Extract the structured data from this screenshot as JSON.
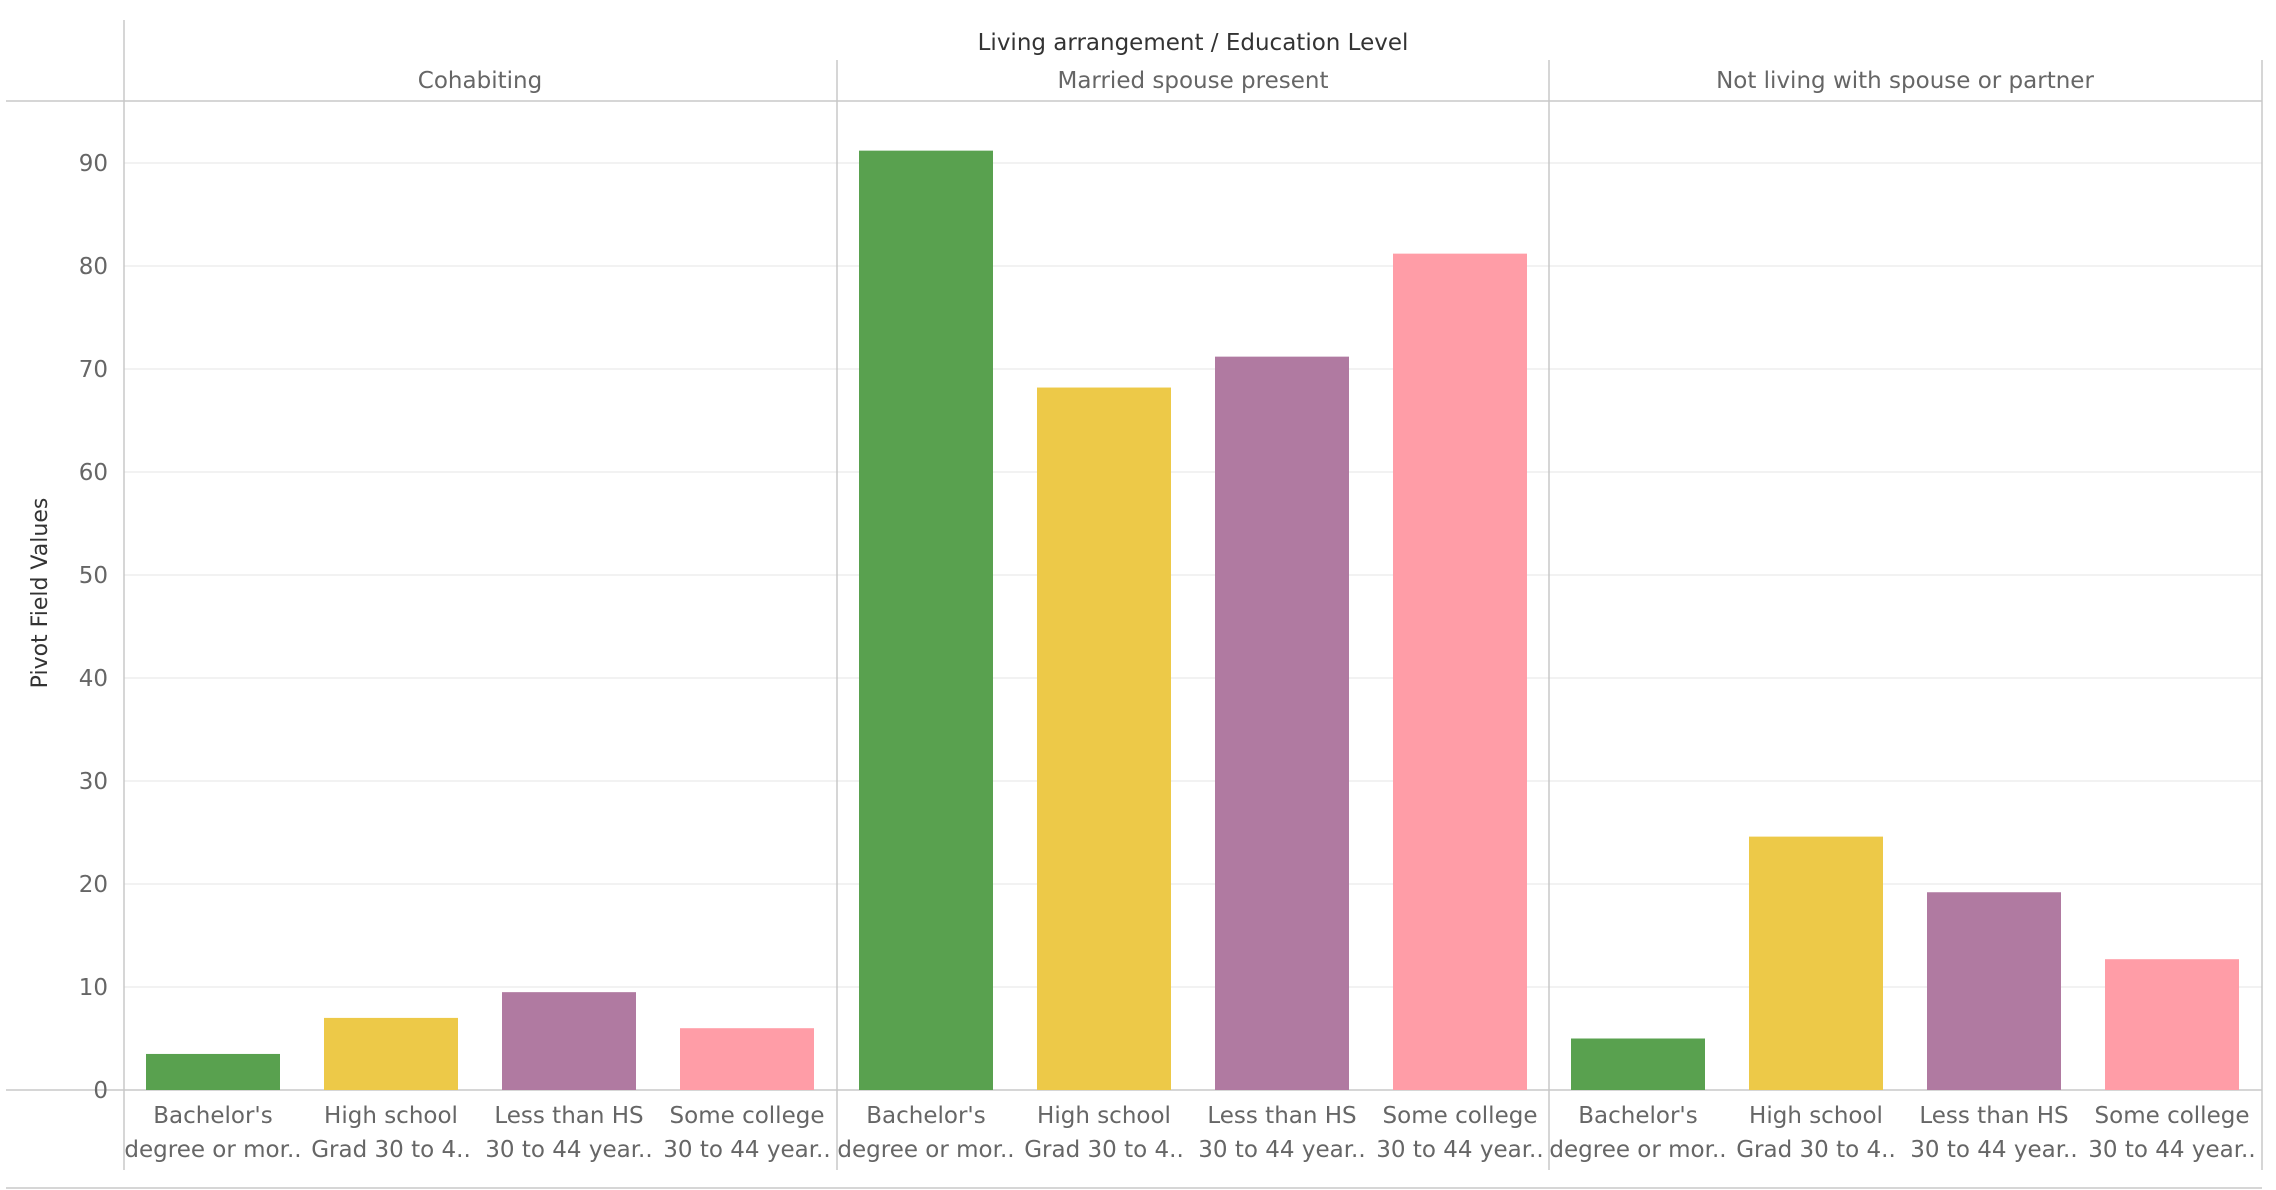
{
  "chart_data": {
    "type": "bar",
    "header_title": "Living arrangement  /  Education Level",
    "ylabel": "Pivot Field Values",
    "ylim": [
      0,
      95
    ],
    "yticks": [
      0,
      10,
      20,
      30,
      40,
      50,
      60,
      70,
      80,
      90
    ],
    "grid": true,
    "categories": [
      [
        "Bachelor's",
        "degree or mor.."
      ],
      [
        "High school",
        "Grad 30 to 4.."
      ],
      [
        "Less than HS",
        "30 to 44 year.."
      ],
      [
        "Some college",
        "30 to 44 year.."
      ]
    ],
    "colors": [
      "#59a14f",
      "#edc948",
      "#b07aa1",
      "#ff9da7"
    ],
    "panels": [
      {
        "label": "Cohabiting",
        "values": [
          3.5,
          7.0,
          9.5,
          6.0
        ]
      },
      {
        "label": "Married spouse present",
        "values": [
          91.2,
          68.2,
          71.2,
          81.2
        ]
      },
      {
        "label": "Not living with spouse or partner",
        "values": [
          5.0,
          24.6,
          19.2,
          12.7
        ]
      }
    ]
  }
}
